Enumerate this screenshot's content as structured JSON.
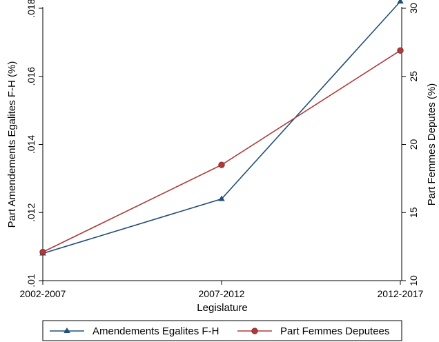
{
  "chart_data": {
    "type": "line",
    "categories": [
      "2002-2007",
      "2007-2012",
      "2012-2017"
    ],
    "xlabel": "Legislature",
    "ylabel_left": "Part Amendements Egalites F-H (%)",
    "ylabel_right": "Part Femmes Deputes (%)",
    "ylim_left": [
      0.01,
      0.018
    ],
    "yticks_left": [
      ".01",
      ".012",
      ".014",
      ".016",
      ".018"
    ],
    "ylim_right": [
      10,
      30
    ],
    "yticks_right": [
      "10",
      "15",
      "20",
      "25",
      "30"
    ],
    "grid": false,
    "legend_position": "bottom",
    "series": [
      {
        "name": "Amendements Egalites F-H",
        "axis": "left",
        "color": "#1f4e79",
        "marker": "triangle",
        "values": [
          0.0108,
          0.0124,
          0.0182
        ]
      },
      {
        "name": "Part Femmes Deputees",
        "axis": "right",
        "color": "#b03a3a",
        "marker": "circle",
        "values": [
          12.1,
          18.5,
          26.9
        ]
      }
    ]
  }
}
